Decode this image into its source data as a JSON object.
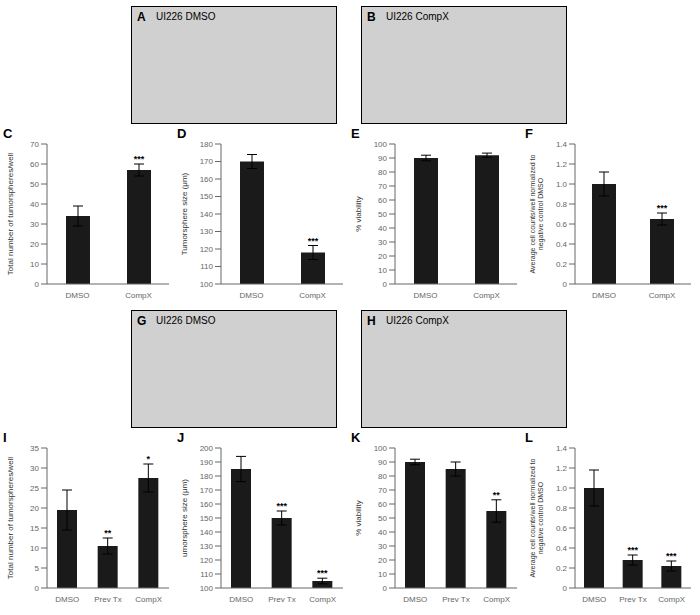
{
  "chart_data": [
    {
      "type": "image",
      "title": "A",
      "subtitle": "UI226 DMSO"
    },
    {
      "type": "image",
      "title": "B",
      "subtitle": "UI226 CompX"
    },
    {
      "type": "bar",
      "title": "C",
      "categories": [
        "DMSO",
        "CompX"
      ],
      "values": [
        34,
        57
      ],
      "errors": [
        5,
        3
      ],
      "ylabel": "Total number of tumorspheres/well",
      "ylim": [
        0,
        70
      ],
      "yticks": [
        0,
        10,
        20,
        30,
        40,
        50,
        60,
        70
      ],
      "color": "#1a1a1a",
      "annotations": [
        {
          "category": "CompX",
          "text": "***"
        }
      ]
    },
    {
      "type": "bar",
      "title": "D",
      "categories": [
        "DMSO",
        "CompX"
      ],
      "values": [
        170,
        118
      ],
      "errors": [
        4,
        4
      ],
      "ylabel": "Tumorsphere size (μm)",
      "ylim": [
        100,
        180
      ],
      "yticks": [
        100,
        110,
        120,
        130,
        140,
        150,
        160,
        170,
        180
      ],
      "color": "#1a1a1a",
      "annotations": [
        {
          "category": "CompX",
          "text": "***"
        }
      ]
    },
    {
      "type": "bar",
      "title": "E",
      "categories": [
        "DMSO",
        "CompX"
      ],
      "values": [
        90,
        92
      ],
      "errors": [
        2,
        1.5
      ],
      "ylabel": "% viability",
      "ylim": [
        0,
        100
      ],
      "yticks": [
        0,
        10,
        20,
        30,
        40,
        50,
        60,
        70,
        80,
        90,
        100
      ],
      "color": "#1a1a1a"
    },
    {
      "type": "bar",
      "title": "F",
      "categories": [
        "DMSO",
        "CompX"
      ],
      "values": [
        1.0,
        0.65
      ],
      "errors": [
        0.12,
        0.06
      ],
      "ylabel": "Average cell counts/well normalized to\nnegative control DMSO",
      "ylim": [
        0,
        1.4
      ],
      "yticks": [
        0,
        0.2,
        0.4,
        0.6,
        0.8,
        {
          "value": 1.0,
          "label": "1.0"
        },
        1.2,
        1.4
      ],
      "color": "#1a1a1a",
      "annotations": [
        {
          "category": "CompX",
          "text": "***"
        }
      ]
    },
    {
      "type": "image",
      "title": "G",
      "subtitle": "UI226 DMSO"
    },
    {
      "type": "image",
      "title": "H",
      "subtitle": "UI226 CompX"
    },
    {
      "type": "bar",
      "title": "I",
      "categories": [
        "DMSO",
        "Prev Tx",
        "CompX"
      ],
      "values": [
        19.5,
        10.5,
        27.5
      ],
      "errors": [
        5,
        2,
        3.5
      ],
      "ylabel": "Total number of tumorspheres/well",
      "ylim": [
        0,
        35
      ],
      "yticks": [
        0,
        5,
        10,
        15,
        20,
        25,
        30,
        35
      ],
      "color": "#1a1a1a",
      "annotations": [
        {
          "category": "Prev Tx",
          "text": "**"
        },
        {
          "category": "CompX",
          "text": "*"
        }
      ]
    },
    {
      "type": "bar",
      "title": "J",
      "categories": [
        "DMSO",
        "Prev Tx",
        "CompX"
      ],
      "values": [
        185,
        150,
        105
      ],
      "errors": [
        9,
        5,
        2
      ],
      "ylabel": "umorsphere size (μm)",
      "ylim": [
        100,
        200
      ],
      "yticks": [
        100,
        110,
        120,
        130,
        140,
        150,
        160,
        170,
        180,
        190,
        200
      ],
      "color": "#1a1a1a",
      "annotations": [
        {
          "category": "Prev Tx",
          "text": "***"
        },
        {
          "category": "CompX",
          "text": "***"
        }
      ]
    },
    {
      "type": "bar",
      "title": "K",
      "categories": [
        "DMSO",
        "Prev Tx",
        "CompX"
      ],
      "values": [
        90,
        85,
        55
      ],
      "errors": [
        2,
        5,
        8
      ],
      "ylabel": "% viability",
      "ylim": [
        0,
        100
      ],
      "yticks": [
        0,
        10,
        20,
        30,
        40,
        50,
        60,
        70,
        80,
        90,
        100
      ],
      "color": "#1a1a1a",
      "annotations": [
        {
          "category": "CompX",
          "text": "**"
        }
      ]
    },
    {
      "type": "bar",
      "title": "L",
      "categories": [
        "DMSO",
        "Prev Tx",
        "CompX"
      ],
      "values": [
        1.0,
        0.28,
        0.22
      ],
      "errors": [
        0.18,
        0.05,
        0.05
      ],
      "ylabel": "Average cell counts/well normalized to\nnegative control DMSO",
      "ylim": [
        0,
        1.4
      ],
      "yticks": [
        0,
        0.2,
        0.4,
        0.6,
        0.8,
        {
          "value": 1.0,
          "label": "1.0"
        },
        1.2,
        1.4
      ],
      "color": "#1a1a1a",
      "annotations": [
        {
          "category": "Prev Tx",
          "text": "***"
        },
        {
          "category": "CompX",
          "text": "***"
        }
      ]
    }
  ]
}
